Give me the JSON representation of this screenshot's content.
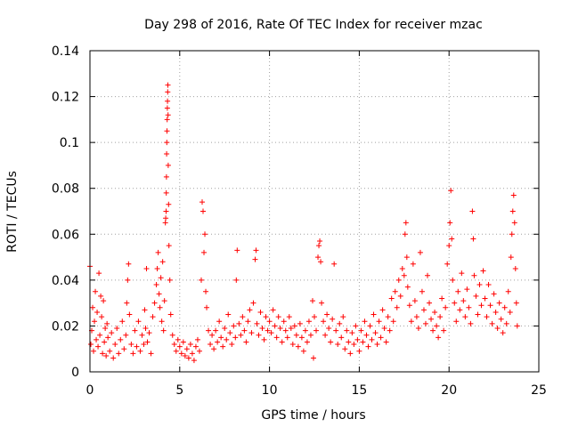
{
  "chart_data": {
    "type": "scatter",
    "title": "Day 298 of 2016, Rate Of TEC Index for receiver mzac",
    "xlabel": "GPS time / hours",
    "ylabel": "ROTI / TECUs",
    "xlim": [
      0,
      25
    ],
    "ylim": [
      0,
      0.14
    ],
    "xticks": [
      "0",
      "5",
      "10",
      "15",
      "20",
      "25"
    ],
    "yticks": [
      "0",
      "0.02",
      "0.04",
      "0.06",
      "0.08",
      "0.1",
      "0.12",
      "0.14"
    ],
    "grid": true,
    "marker": "+",
    "color": "#ff0000",
    "series": [
      {
        "name": "ROTI",
        "points": [
          [
            0.0,
            0.046
          ],
          [
            0.05,
            0.012
          ],
          [
            0.1,
            0.018
          ],
          [
            0.15,
            0.028
          ],
          [
            0.2,
            0.009
          ],
          [
            0.25,
            0.022
          ],
          [
            0.3,
            0.035
          ],
          [
            0.35,
            0.014
          ],
          [
            0.4,
            0.026
          ],
          [
            0.45,
            0.011
          ],
          [
            0.5,
            0.043
          ],
          [
            0.55,
            0.016
          ],
          [
            0.6,
            0.033
          ],
          [
            0.65,
            0.024
          ],
          [
            0.7,
            0.008
          ],
          [
            0.75,
            0.031
          ],
          [
            0.8,
            0.013
          ],
          [
            0.85,
            0.019
          ],
          [
            0.9,
            0.007
          ],
          [
            0.95,
            0.021
          ],
          [
            1.0,
            0.015
          ],
          [
            1.1,
            0.009
          ],
          [
            1.2,
            0.017
          ],
          [
            1.3,
            0.006
          ],
          [
            1.4,
            0.012
          ],
          [
            1.5,
            0.019
          ],
          [
            1.6,
            0.008
          ],
          [
            1.7,
            0.014
          ],
          [
            1.8,
            0.022
          ],
          [
            1.9,
            0.01
          ],
          [
            2.0,
            0.016
          ],
          [
            2.05,
            0.03
          ],
          [
            2.1,
            0.04
          ],
          [
            2.15,
            0.047
          ],
          [
            2.2,
            0.025
          ],
          [
            2.3,
            0.012
          ],
          [
            2.4,
            0.008
          ],
          [
            2.5,
            0.018
          ],
          [
            2.6,
            0.011
          ],
          [
            2.7,
            0.022
          ],
          [
            2.8,
            0.009
          ],
          [
            2.9,
            0.016
          ],
          [
            3.0,
            0.012
          ],
          [
            3.05,
            0.027
          ],
          [
            3.1,
            0.019
          ],
          [
            3.15,
            0.045
          ],
          [
            3.2,
            0.013
          ],
          [
            3.3,
            0.017
          ],
          [
            3.4,
            0.008
          ],
          [
            3.5,
            0.024
          ],
          [
            3.6,
            0.03
          ],
          [
            3.7,
            0.038
          ],
          [
            3.75,
            0.045
          ],
          [
            3.8,
            0.052
          ],
          [
            3.85,
            0.034
          ],
          [
            3.9,
            0.028
          ],
          [
            3.95,
            0.041
          ],
          [
            4.0,
            0.022
          ],
          [
            4.05,
            0.048
          ],
          [
            4.1,
            0.018
          ],
          [
            4.15,
            0.031
          ],
          [
            4.2,
            0.065
          ],
          [
            4.22,
            0.067
          ],
          [
            4.24,
            0.07
          ],
          [
            4.25,
            0.078
          ],
          [
            4.26,
            0.085
          ],
          [
            4.27,
            0.095
          ],
          [
            4.28,
            0.1
          ],
          [
            4.29,
            0.105
          ],
          [
            4.3,
            0.11
          ],
          [
            4.31,
            0.115
          ],
          [
            4.32,
            0.118
          ],
          [
            4.33,
            0.122
          ],
          [
            4.34,
            0.125
          ],
          [
            4.35,
            0.112
          ],
          [
            4.36,
            0.09
          ],
          [
            4.38,
            0.073
          ],
          [
            4.4,
            0.055
          ],
          [
            4.45,
            0.04
          ],
          [
            4.5,
            0.025
          ],
          [
            4.6,
            0.016
          ],
          [
            4.7,
            0.012
          ],
          [
            4.8,
            0.009
          ],
          [
            4.9,
            0.014
          ],
          [
            5.0,
            0.011
          ],
          [
            5.1,
            0.008
          ],
          [
            5.2,
            0.013
          ],
          [
            5.3,
            0.007
          ],
          [
            5.4,
            0.01
          ],
          [
            5.5,
            0.006
          ],
          [
            5.6,
            0.012
          ],
          [
            5.7,
            0.008
          ],
          [
            5.8,
            0.005
          ],
          [
            5.9,
            0.011
          ],
          [
            6.0,
            0.014
          ],
          [
            6.1,
            0.009
          ],
          [
            6.2,
            0.04
          ],
          [
            6.25,
            0.074
          ],
          [
            6.3,
            0.07
          ],
          [
            6.35,
            0.052
          ],
          [
            6.4,
            0.06
          ],
          [
            6.45,
            0.035
          ],
          [
            6.5,
            0.028
          ],
          [
            6.6,
            0.018
          ],
          [
            6.7,
            0.012
          ],
          [
            6.8,
            0.016
          ],
          [
            6.9,
            0.01
          ],
          [
            7.0,
            0.018
          ],
          [
            7.1,
            0.013
          ],
          [
            7.2,
            0.022
          ],
          [
            7.3,
            0.015
          ],
          [
            7.4,
            0.011
          ],
          [
            7.5,
            0.019
          ],
          [
            7.6,
            0.014
          ],
          [
            7.7,
            0.025
          ],
          [
            7.8,
            0.017
          ],
          [
            7.9,
            0.012
          ],
          [
            8.0,
            0.02
          ],
          [
            8.1,
            0.015
          ],
          [
            8.15,
            0.04
          ],
          [
            8.2,
            0.053
          ],
          [
            8.3,
            0.021
          ],
          [
            8.4,
            0.016
          ],
          [
            8.5,
            0.024
          ],
          [
            8.6,
            0.018
          ],
          [
            8.7,
            0.013
          ],
          [
            8.8,
            0.022
          ],
          [
            8.9,
            0.027
          ],
          [
            9.0,
            0.017
          ],
          [
            9.1,
            0.03
          ],
          [
            9.2,
            0.049
          ],
          [
            9.25,
            0.053
          ],
          [
            9.3,
            0.021
          ],
          [
            9.4,
            0.016
          ],
          [
            9.5,
            0.026
          ],
          [
            9.6,
            0.019
          ],
          [
            9.7,
            0.014
          ],
          [
            9.8,
            0.024
          ],
          [
            9.9,
            0.018
          ],
          [
            10.0,
            0.022
          ],
          [
            10.1,
            0.017
          ],
          [
            10.2,
            0.027
          ],
          [
            10.3,
            0.02
          ],
          [
            10.4,
            0.015
          ],
          [
            10.5,
            0.024
          ],
          [
            10.6,
            0.019
          ],
          [
            10.7,
            0.013
          ],
          [
            10.8,
            0.022
          ],
          [
            10.9,
            0.018
          ],
          [
            11.0,
            0.015
          ],
          [
            11.1,
            0.024
          ],
          [
            11.2,
            0.019
          ],
          [
            11.3,
            0.012
          ],
          [
            11.4,
            0.02
          ],
          [
            11.5,
            0.016
          ],
          [
            11.6,
            0.011
          ],
          [
            11.7,
            0.021
          ],
          [
            11.8,
            0.015
          ],
          [
            11.9,
            0.009
          ],
          [
            12.0,
            0.018
          ],
          [
            12.1,
            0.013
          ],
          [
            12.2,
            0.022
          ],
          [
            12.3,
            0.016
          ],
          [
            12.4,
            0.031
          ],
          [
            12.45,
            0.006
          ],
          [
            12.5,
            0.024
          ],
          [
            12.6,
            0.018
          ],
          [
            12.7,
            0.05
          ],
          [
            12.75,
            0.055
          ],
          [
            12.8,
            0.057
          ],
          [
            12.85,
            0.048
          ],
          [
            12.9,
            0.03
          ],
          [
            13.0,
            0.022
          ],
          [
            13.1,
            0.016
          ],
          [
            13.2,
            0.025
          ],
          [
            13.3,
            0.019
          ],
          [
            13.4,
            0.013
          ],
          [
            13.5,
            0.023
          ],
          [
            13.6,
            0.047
          ],
          [
            13.7,
            0.018
          ],
          [
            13.8,
            0.012
          ],
          [
            13.9,
            0.021
          ],
          [
            14.0,
            0.015
          ],
          [
            14.1,
            0.024
          ],
          [
            14.2,
            0.01
          ],
          [
            14.3,
            0.018
          ],
          [
            14.4,
            0.013
          ],
          [
            14.5,
            0.008
          ],
          [
            14.6,
            0.017
          ],
          [
            14.7,
            0.012
          ],
          [
            14.8,
            0.02
          ],
          [
            14.9,
            0.014
          ],
          [
            15.0,
            0.009
          ],
          [
            15.1,
            0.018
          ],
          [
            15.2,
            0.013
          ],
          [
            15.3,
            0.022
          ],
          [
            15.4,
            0.016
          ],
          [
            15.5,
            0.011
          ],
          [
            15.6,
            0.02
          ],
          [
            15.7,
            0.014
          ],
          [
            15.8,
            0.025
          ],
          [
            15.9,
            0.017
          ],
          [
            16.0,
            0.012
          ],
          [
            16.1,
            0.022
          ],
          [
            16.2,
            0.015
          ],
          [
            16.3,
            0.027
          ],
          [
            16.4,
            0.019
          ],
          [
            16.5,
            0.013
          ],
          [
            16.6,
            0.024
          ],
          [
            16.7,
            0.018
          ],
          [
            16.8,
            0.032
          ],
          [
            16.9,
            0.022
          ],
          [
            17.0,
            0.035
          ],
          [
            17.1,
            0.028
          ],
          [
            17.2,
            0.04
          ],
          [
            17.3,
            0.033
          ],
          [
            17.4,
            0.045
          ],
          [
            17.5,
            0.042
          ],
          [
            17.55,
            0.06
          ],
          [
            17.6,
            0.065
          ],
          [
            17.65,
            0.05
          ],
          [
            17.7,
            0.037
          ],
          [
            17.8,
            0.029
          ],
          [
            17.9,
            0.022
          ],
          [
            18.0,
            0.047
          ],
          [
            18.1,
            0.031
          ],
          [
            18.2,
            0.024
          ],
          [
            18.3,
            0.019
          ],
          [
            18.4,
            0.052
          ],
          [
            18.5,
            0.035
          ],
          [
            18.6,
            0.027
          ],
          [
            18.7,
            0.021
          ],
          [
            18.8,
            0.042
          ],
          [
            18.9,
            0.03
          ],
          [
            19.0,
            0.023
          ],
          [
            19.1,
            0.018
          ],
          [
            19.2,
            0.026
          ],
          [
            19.3,
            0.02
          ],
          [
            19.4,
            0.015
          ],
          [
            19.5,
            0.024
          ],
          [
            19.6,
            0.032
          ],
          [
            19.7,
            0.018
          ],
          [
            19.8,
            0.028
          ],
          [
            19.9,
            0.047
          ],
          [
            20.0,
            0.055
          ],
          [
            20.05,
            0.065
          ],
          [
            20.1,
            0.079
          ],
          [
            20.15,
            0.058
          ],
          [
            20.2,
            0.04
          ],
          [
            20.3,
            0.03
          ],
          [
            20.4,
            0.022
          ],
          [
            20.5,
            0.035
          ],
          [
            20.6,
            0.027
          ],
          [
            20.7,
            0.043
          ],
          [
            20.8,
            0.031
          ],
          [
            20.9,
            0.024
          ],
          [
            21.0,
            0.036
          ],
          [
            21.1,
            0.028
          ],
          [
            21.2,
            0.021
          ],
          [
            21.3,
            0.07
          ],
          [
            21.35,
            0.058
          ],
          [
            21.4,
            0.042
          ],
          [
            21.5,
            0.033
          ],
          [
            21.6,
            0.025
          ],
          [
            21.7,
            0.038
          ],
          [
            21.8,
            0.029
          ],
          [
            21.9,
            0.044
          ],
          [
            22.0,
            0.032
          ],
          [
            22.1,
            0.024
          ],
          [
            22.2,
            0.038
          ],
          [
            22.3,
            0.029
          ],
          [
            22.4,
            0.021
          ],
          [
            22.5,
            0.034
          ],
          [
            22.6,
            0.026
          ],
          [
            22.7,
            0.019
          ],
          [
            22.8,
            0.03
          ],
          [
            22.9,
            0.023
          ],
          [
            23.0,
            0.017
          ],
          [
            23.1,
            0.028
          ],
          [
            23.2,
            0.021
          ],
          [
            23.3,
            0.035
          ],
          [
            23.4,
            0.026
          ],
          [
            23.45,
            0.05
          ],
          [
            23.5,
            0.06
          ],
          [
            23.55,
            0.07
          ],
          [
            23.6,
            0.077
          ],
          [
            23.65,
            0.065
          ],
          [
            23.7,
            0.045
          ],
          [
            23.75,
            0.03
          ],
          [
            23.8,
            0.02
          ]
        ]
      }
    ]
  }
}
